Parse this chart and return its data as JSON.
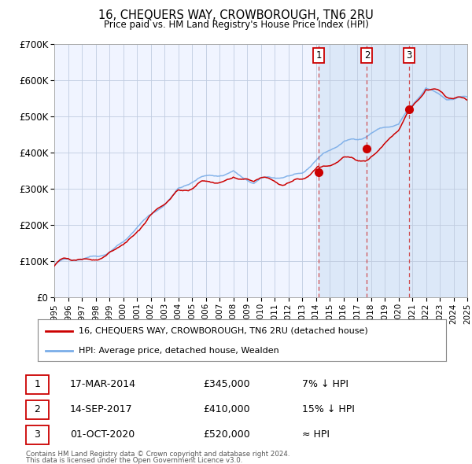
{
  "title": "16, CHEQUERS WAY, CROWBOROUGH, TN6 2RU",
  "subtitle": "Price paid vs. HM Land Registry's House Price Index (HPI)",
  "legend_line1": "16, CHEQUERS WAY, CROWBOROUGH, TN6 2RU (detached house)",
  "legend_line2": "HPI: Average price, detached house, Wealden",
  "footer1": "Contains HM Land Registry data © Crown copyright and database right 2024.",
  "footer2": "This data is licensed under the Open Government Licence v3.0.",
  "transactions": [
    {
      "num": 1,
      "date": "17-MAR-2014",
      "price": 345000,
      "hpi_note": "7% ↓ HPI",
      "year": 2014.21
    },
    {
      "num": 2,
      "date": "14-SEP-2017",
      "price": 410000,
      "hpi_note": "15% ↓ HPI",
      "year": 2017.71
    },
    {
      "num": 3,
      "date": "01-OCT-2020",
      "price": 520000,
      "hpi_note": "≈ HPI",
      "year": 2020.75
    }
  ],
  "ylim": [
    0,
    700000
  ],
  "yticks": [
    0,
    100000,
    200000,
    300000,
    400000,
    500000,
    600000,
    700000
  ],
  "ytick_labels": [
    "£0",
    "£100K",
    "£200K",
    "£300K",
    "£400K",
    "£500K",
    "£600K",
    "£700K"
  ],
  "bg_color": "#ffffff",
  "plot_bg_color": "#f0f4ff",
  "grid_color": "#c0cce0",
  "line_color_red": "#cc0000",
  "line_color_blue": "#7aade8",
  "shade_color": "#dce8f8",
  "dashed_line_color": "#cc3333",
  "marker_color": "#cc0000",
  "x_start_year": 1995,
  "x_end_year": 2025
}
